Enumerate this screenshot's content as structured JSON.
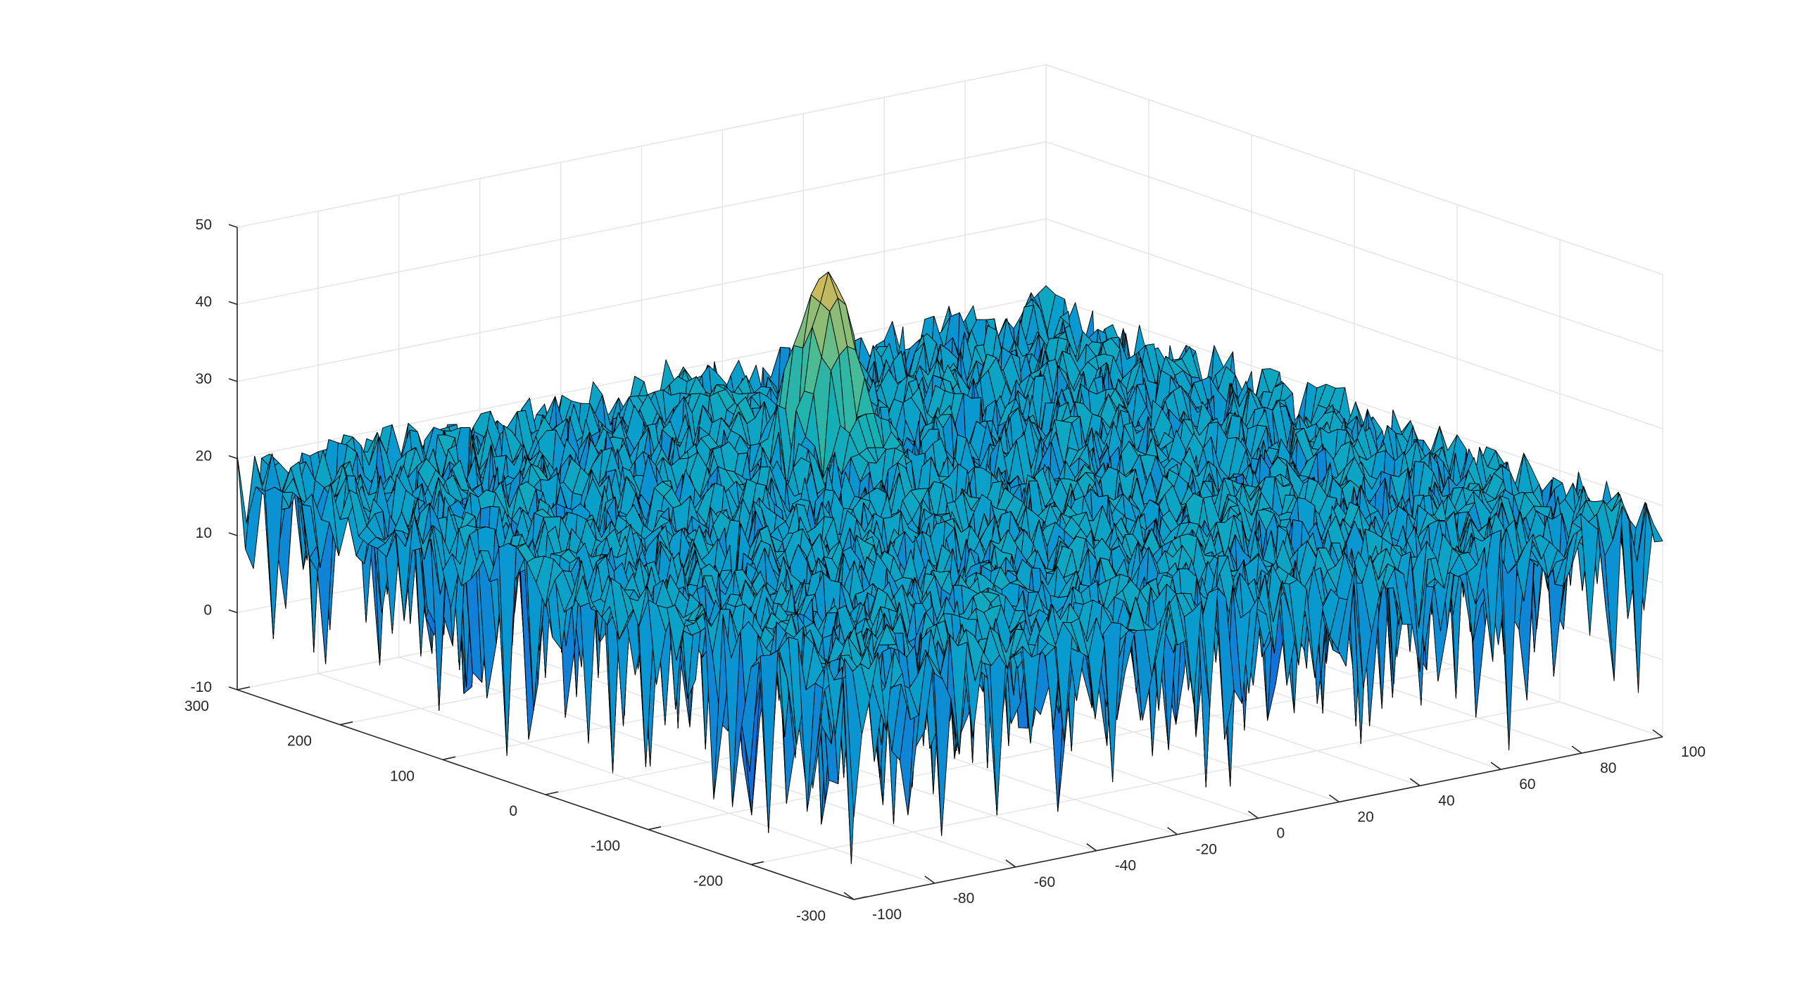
{
  "chart_data": {
    "type": "surface",
    "title": "",
    "xlabel": "",
    "ylabel": "",
    "zlabel": "",
    "grid": true,
    "colormap": "parula",
    "edge_color": "#000000",
    "x_axis": {
      "range": [
        -100,
        100
      ],
      "ticks": [
        -100,
        -80,
        -60,
        -40,
        -20,
        0,
        20,
        40,
        60,
        80,
        100
      ],
      "tick_labels": [
        "-100",
        "-80",
        "-60",
        "-40",
        "-20",
        "0",
        "20",
        "40",
        "60",
        "80",
        "100"
      ]
    },
    "y_axis": {
      "range": [
        -300,
        300
      ],
      "ticks": [
        -300,
        -200,
        -100,
        0,
        100,
        200,
        300
      ],
      "tick_labels": [
        "-300",
        "-200",
        "-100",
        "0",
        "100",
        "200",
        "300"
      ]
    },
    "z_axis": {
      "range": [
        -10,
        50
      ],
      "ticks": [
        -10,
        0,
        10,
        20,
        30,
        40,
        50
      ],
      "tick_labels": [
        "-10",
        "0",
        "10",
        "20",
        "30",
        "40",
        "50"
      ]
    },
    "surface": {
      "x_range": [
        -100,
        100
      ],
      "y_range": [
        -300,
        300
      ],
      "noise_floor_mean": 18,
      "noise_floor_min": -8,
      "noise_floor_max": 24,
      "peak": {
        "x": 0,
        "y": 120,
        "z": 42
      }
    }
  }
}
